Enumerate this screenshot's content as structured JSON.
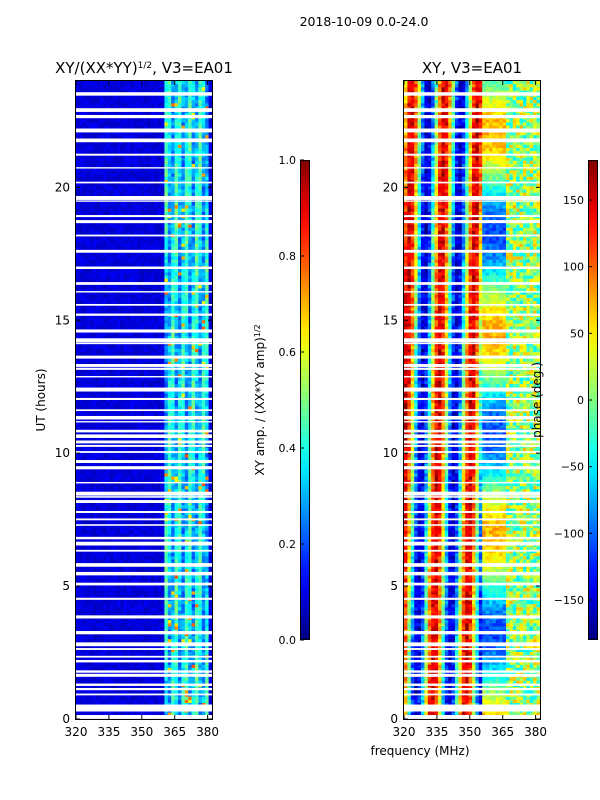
{
  "figure": {
    "suptitle": "2018-10-09 0.0-24.0",
    "shared_xlabel": "frequency (MHz)"
  },
  "chart_data": [
    {
      "type": "heatmap",
      "title_main": "XY/(XX*YY)",
      "title_sup": "1/2",
      "title_rest": ", V3=EA01",
      "xlabel": "",
      "ylabel": "UT (hours)",
      "xlim": [
        320,
        382
      ],
      "ylim": [
        0,
        24
      ],
      "xticks": [
        320,
        335,
        350,
        365,
        380
      ],
      "yticks": [
        0,
        5,
        10,
        15,
        20
      ],
      "colormap": "jet",
      "cbar": {
        "label_main": "XY amp. / (XX*YY amp)",
        "label_sup": "1/2",
        "range": [
          0.0,
          1.0
        ],
        "ticks": [
          "0.0",
          "0.2",
          "0.4",
          "0.6",
          "0.8",
          "1.0"
        ]
      }
    },
    {
      "type": "heatmap",
      "title_main": "XY, V3=EA01",
      "xlabel": "",
      "ylabel": "",
      "xlim": [
        320,
        382
      ],
      "ylim": [
        0,
        24
      ],
      "xticks": [
        320,
        335,
        350,
        365,
        380
      ],
      "yticks": [
        0,
        5,
        10,
        15,
        20
      ],
      "colormap": "jet",
      "cbar": {
        "label_main": "phase (deg.)",
        "range": [
          -180,
          180
        ],
        "ticks": [
          "-150",
          "-100",
          "-50",
          "0",
          "50",
          "100",
          "150"
        ]
      }
    }
  ]
}
